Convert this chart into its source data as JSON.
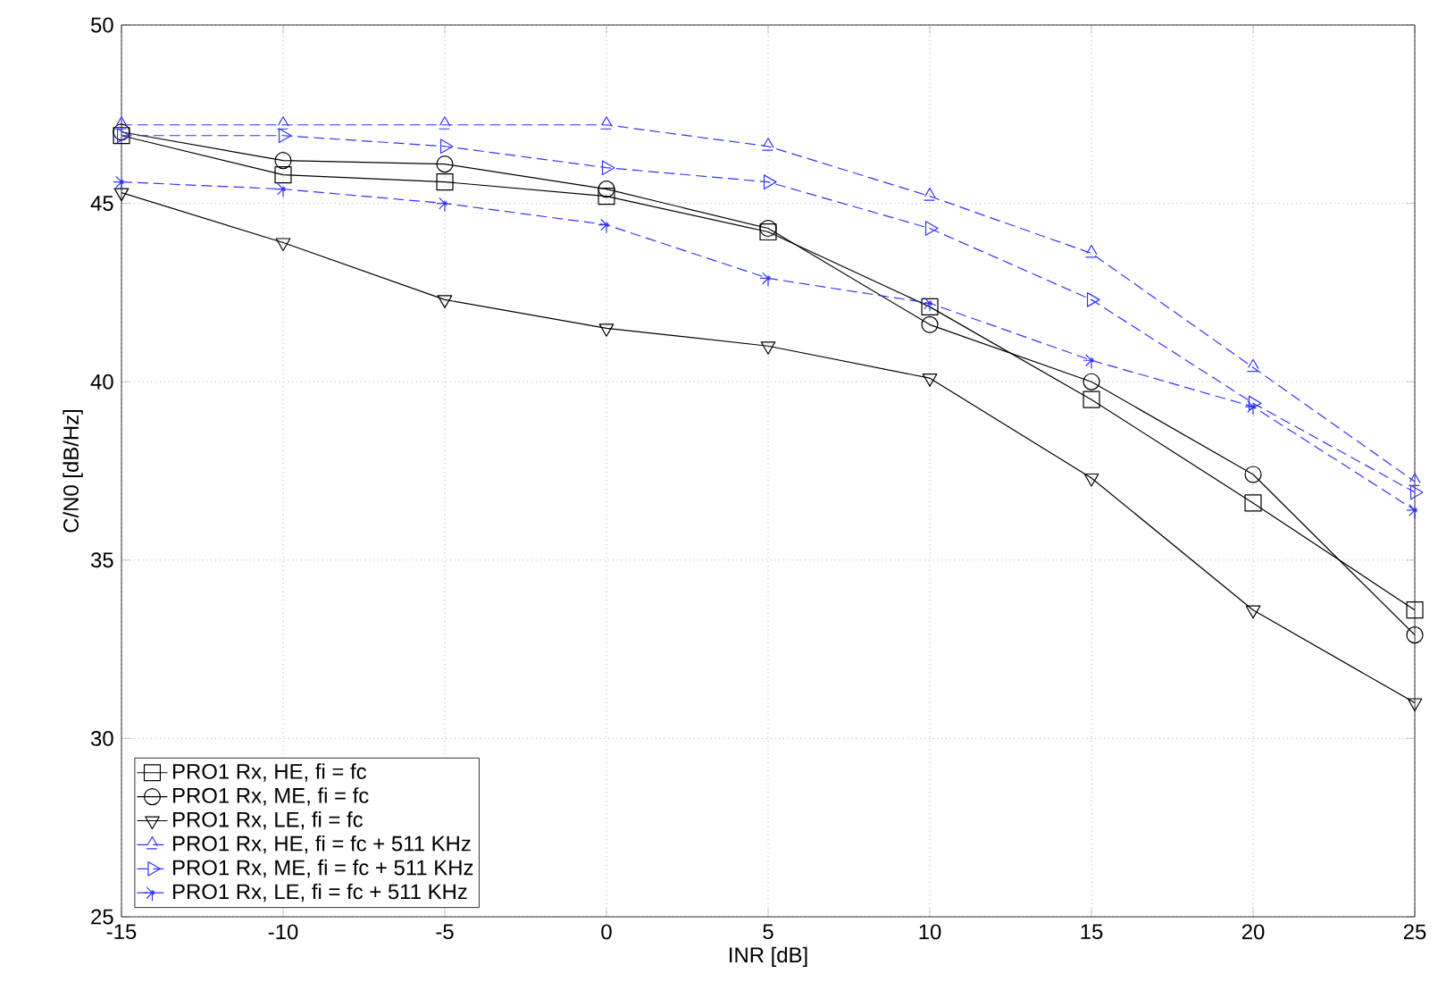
{
  "chart_data": {
    "type": "line",
    "xlabel": "INR [dB]",
    "ylabel": "C/N0 [dB/Hz]",
    "x": [
      -15,
      -10,
      -5,
      0,
      5,
      10,
      15,
      20,
      25
    ],
    "series": [
      {
        "name": "PRO1 Rx, HE, fi = fc",
        "color": "#000000",
        "marker": "square",
        "line_style": "solid",
        "values": [
          46.9,
          45.8,
          45.6,
          45.2,
          44.2,
          42.1,
          39.5,
          36.6,
          33.6
        ]
      },
      {
        "name": "PRO1 Rx, ME, fi = fc",
        "color": "#000000",
        "marker": "circle",
        "line_style": "solid",
        "values": [
          47.0,
          46.2,
          46.1,
          45.4,
          44.3,
          41.6,
          40.0,
          37.4,
          32.9
        ]
      },
      {
        "name": "PRO1 Rx, LE, fi = fc",
        "color": "#000000",
        "marker": "triangle-down",
        "line_style": "solid",
        "values": [
          45.3,
          43.9,
          42.3,
          41.5,
          41.0,
          40.1,
          37.3,
          33.6,
          31.0
        ]
      },
      {
        "name": "PRO1 Rx, HE, fi = fc + 511 KHz",
        "color": "#3333ff",
        "marker": "triangle",
        "line_style": "dashed",
        "values": [
          47.2,
          47.2,
          47.2,
          47.2,
          46.6,
          45.2,
          43.6,
          40.4,
          37.2
        ]
      },
      {
        "name": "PRO1 Rx, ME, fi = fc + 511 KHz",
        "color": "#3333ff",
        "marker": "triangle-right",
        "line_style": "dashed",
        "values": [
          46.9,
          46.9,
          46.6,
          46.0,
          45.6,
          44.3,
          42.3,
          39.4,
          36.9
        ]
      },
      {
        "name": "PRO1 Rx, LE, fi = fc + 511 KHz",
        "color": "#3333ff",
        "marker": "cross",
        "line_style": "dashed",
        "values": [
          45.6,
          45.4,
          45.0,
          44.4,
          42.9,
          42.2,
          40.6,
          39.3,
          36.4
        ]
      }
    ],
    "xlim": [
      -15,
      25
    ],
    "xticks": [
      -15,
      -10,
      -5,
      0,
      5,
      10,
      15,
      20,
      25
    ],
    "ylim": [
      25,
      50
    ],
    "yticks": [
      25,
      30,
      35,
      40,
      45,
      50
    ],
    "grid": true,
    "legend": "bottom left"
  }
}
